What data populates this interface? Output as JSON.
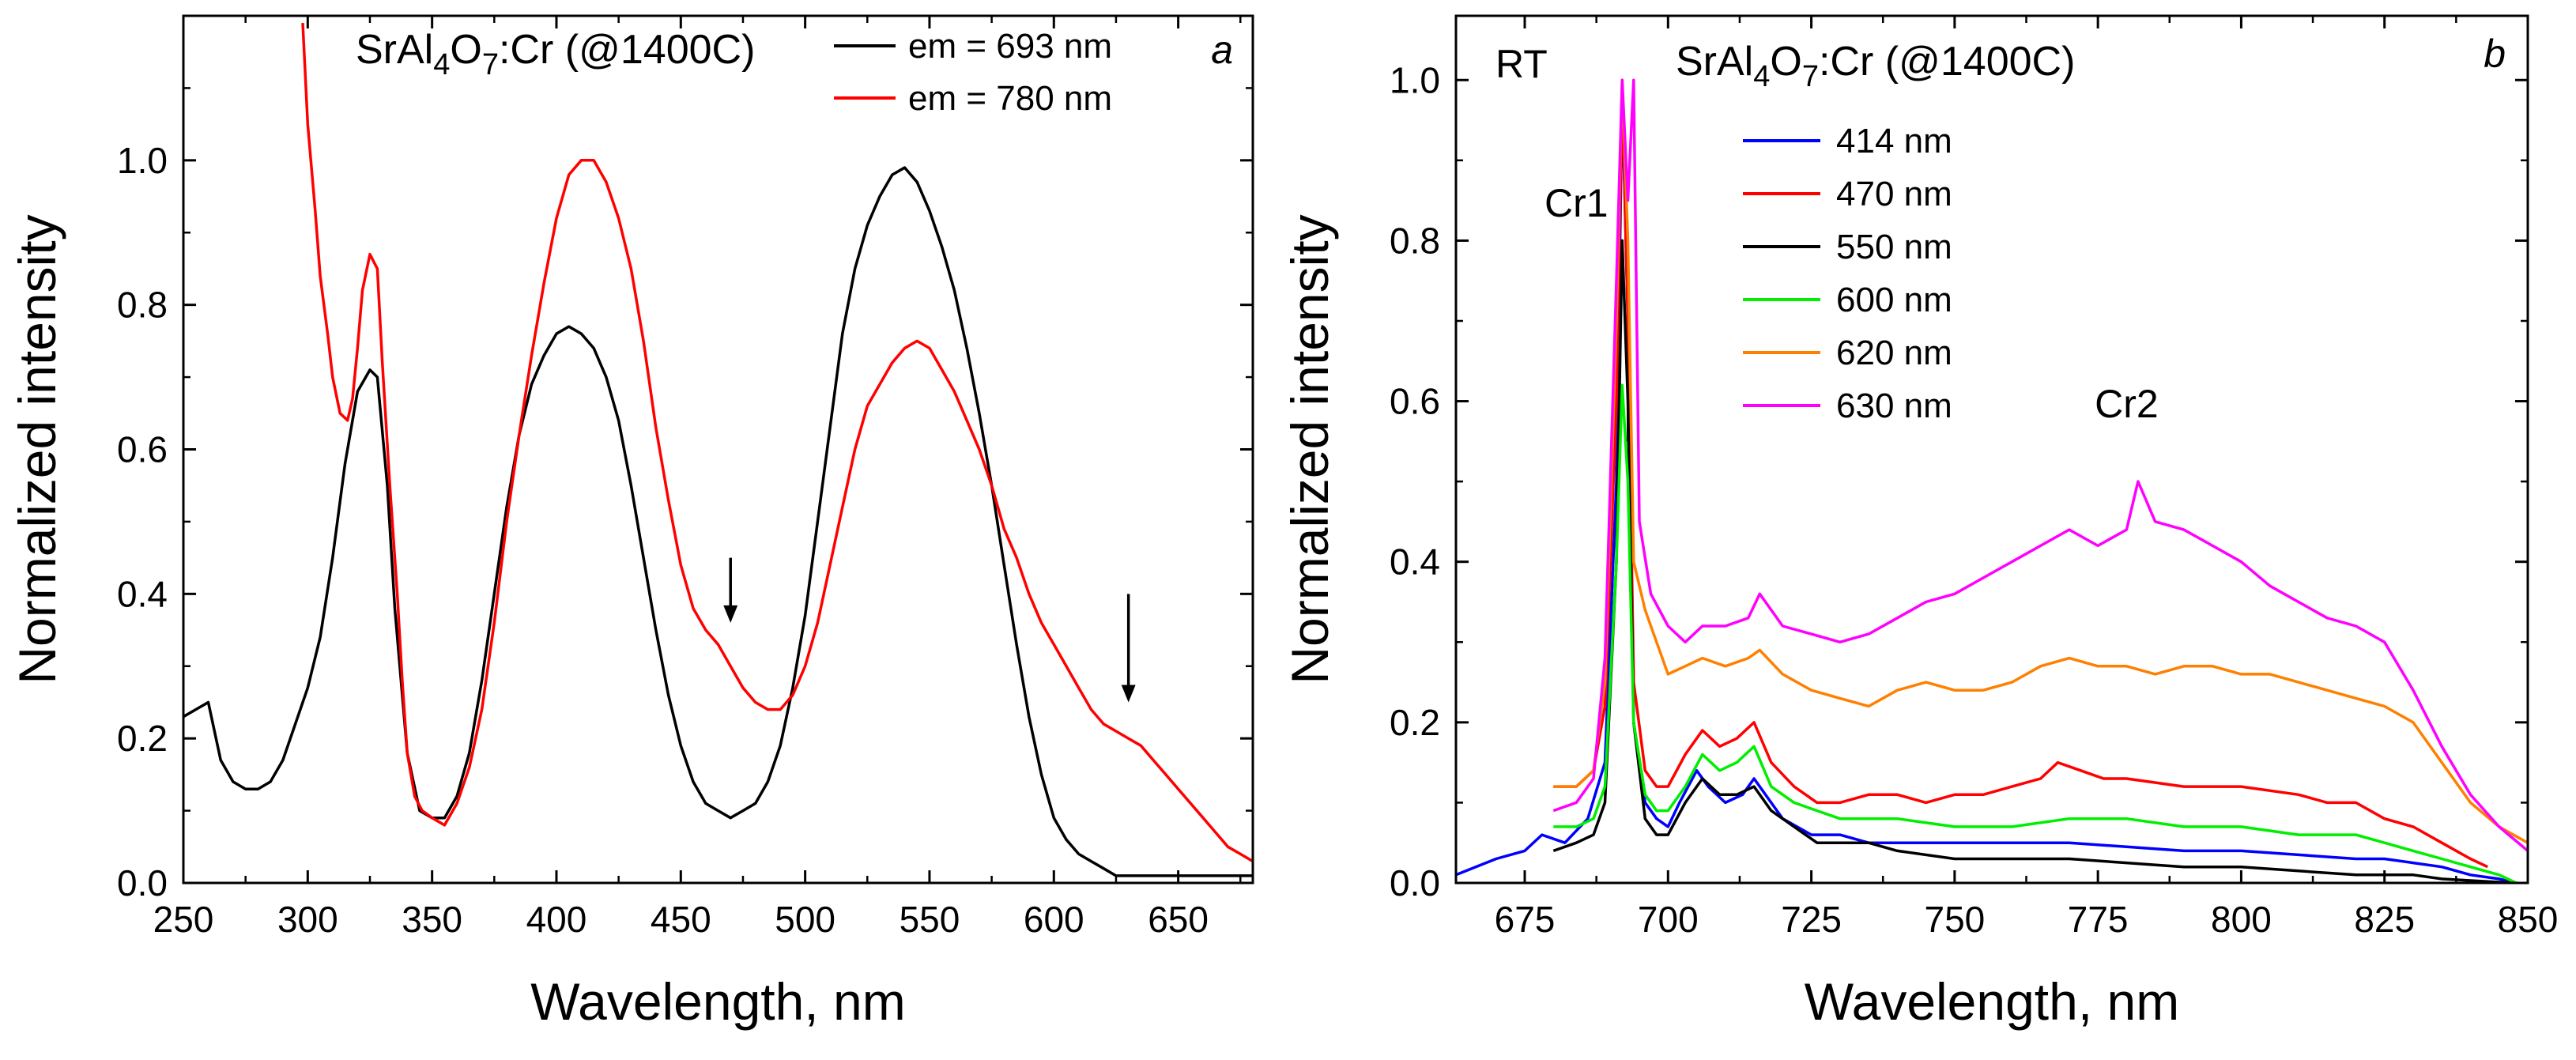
{
  "chart_data": [
    {
      "type": "line",
      "panel": "a",
      "title": "SrAl4O7:Cr (@1400C)",
      "title_parts": [
        "SrAl",
        "4",
        "O",
        "7",
        ":Cr (@1400C)"
      ],
      "xlabel": "Wavelength, nm",
      "ylabel": "Normalized intensity",
      "xlim": [
        250,
        680
      ],
      "ylim": [
        0,
        1.2
      ],
      "xticks": [
        250,
        300,
        350,
        400,
        450,
        500,
        550,
        600,
        650
      ],
      "yticks": [
        0.0,
        0.2,
        0.4,
        0.6,
        0.8,
        1.0
      ],
      "ytick_labels": [
        "0.0",
        "0.2",
        "0.4",
        "0.6",
        "0.8",
        "1.0"
      ],
      "arrows_at_x": [
        470,
        630
      ],
      "series": [
        {
          "name": "em = 693 nm",
          "color": "#000000",
          "x": [
            250,
            255,
            260,
            265,
            270,
            275,
            280,
            285,
            290,
            295,
            300,
            305,
            310,
            315,
            320,
            325,
            328,
            332,
            335,
            340,
            345,
            350,
            355,
            360,
            365,
            370,
            375,
            380,
            385,
            390,
            395,
            400,
            405,
            410,
            415,
            420,
            425,
            430,
            435,
            440,
            445,
            450,
            455,
            460,
            465,
            470,
            475,
            480,
            485,
            490,
            495,
            500,
            505,
            510,
            515,
            520,
            525,
            530,
            535,
            540,
            545,
            550,
            555,
            560,
            565,
            570,
            575,
            580,
            585,
            590,
            595,
            600,
            605,
            610,
            615,
            620,
            625,
            630,
            635,
            640,
            645,
            650,
            655,
            660,
            665,
            670,
            675,
            680
          ],
          "y": [
            0.23,
            0.24,
            0.25,
            0.17,
            0.14,
            0.13,
            0.13,
            0.14,
            0.17,
            0.22,
            0.27,
            0.34,
            0.45,
            0.58,
            0.68,
            0.71,
            0.7,
            0.55,
            0.38,
            0.18,
            0.1,
            0.09,
            0.09,
            0.12,
            0.18,
            0.28,
            0.4,
            0.52,
            0.62,
            0.69,
            0.73,
            0.76,
            0.77,
            0.76,
            0.74,
            0.7,
            0.64,
            0.55,
            0.45,
            0.35,
            0.26,
            0.19,
            0.14,
            0.11,
            0.1,
            0.09,
            0.1,
            0.11,
            0.14,
            0.19,
            0.27,
            0.37,
            0.5,
            0.63,
            0.76,
            0.85,
            0.91,
            0.95,
            0.98,
            0.99,
            0.97,
            0.93,
            0.88,
            0.82,
            0.74,
            0.65,
            0.55,
            0.44,
            0.33,
            0.23,
            0.15,
            0.09,
            0.06,
            0.04,
            0.03,
            0.02,
            0.01,
            0.01,
            0.01,
            0.01,
            0.01,
            0.01,
            0.01,
            0.01,
            0.01,
            0.01,
            0.01,
            0.01
          ]
        },
        {
          "name": "em = 780 nm",
          "color": "#ff0000",
          "x": [
            298,
            300,
            303,
            305,
            308,
            310,
            313,
            316,
            318,
            320,
            322,
            325,
            328,
            330,
            333,
            336,
            338,
            340,
            343,
            346,
            350,
            355,
            360,
            365,
            370,
            375,
            380,
            385,
            390,
            395,
            400,
            405,
            410,
            415,
            420,
            425,
            430,
            435,
            440,
            445,
            450,
            455,
            460,
            465,
            470,
            475,
            480,
            485,
            490,
            495,
            500,
            505,
            510,
            515,
            520,
            525,
            530,
            535,
            540,
            545,
            550,
            555,
            560,
            565,
            570,
            575,
            580,
            585,
            590,
            595,
            600,
            605,
            610,
            615,
            620,
            625,
            630,
            635,
            640,
            645,
            650,
            655,
            660,
            665,
            670,
            675,
            680
          ],
          "y": [
            1.19,
            1.05,
            0.93,
            0.84,
            0.76,
            0.7,
            0.65,
            0.64,
            0.67,
            0.74,
            0.82,
            0.87,
            0.85,
            0.72,
            0.55,
            0.4,
            0.28,
            0.18,
            0.12,
            0.1,
            0.09,
            0.08,
            0.11,
            0.16,
            0.24,
            0.36,
            0.5,
            0.62,
            0.73,
            0.83,
            0.92,
            0.98,
            1.0,
            1.0,
            0.97,
            0.92,
            0.85,
            0.75,
            0.63,
            0.53,
            0.44,
            0.38,
            0.35,
            0.33,
            0.3,
            0.27,
            0.25,
            0.24,
            0.24,
            0.26,
            0.3,
            0.36,
            0.44,
            0.52,
            0.6,
            0.66,
            0.69,
            0.72,
            0.74,
            0.75,
            0.74,
            0.71,
            0.68,
            0.64,
            0.6,
            0.55,
            0.49,
            0.45,
            0.4,
            0.36,
            0.33,
            0.3,
            0.27,
            0.24,
            0.22,
            0.21,
            0.2,
            0.19,
            0.17,
            0.15,
            0.13,
            0.11,
            0.09,
            0.07,
            0.05,
            0.04,
            0.03
          ]
        }
      ]
    },
    {
      "type": "line",
      "panel": "b",
      "title": "SrAl4O7:Cr (@1400C)",
      "title_parts": [
        "SrAl",
        "4",
        "O",
        "7",
        ":Cr (@1400C)"
      ],
      "xlabel": "Wavelength, nm",
      "ylabel": "Normalized intensity",
      "xlim": [
        663,
        850
      ],
      "ylim": [
        0,
        1.08
      ],
      "xticks": [
        675,
        700,
        725,
        750,
        775,
        800,
        825,
        850
      ],
      "yticks": [
        0.0,
        0.2,
        0.4,
        0.6,
        0.8,
        1.0
      ],
      "ytick_labels": [
        "0.0",
        "0.2",
        "0.4",
        "0.6",
        "0.8",
        "1.0"
      ],
      "annotations": [
        {
          "text": "RT",
          "at": "top-left"
        },
        {
          "text": "Cr1",
          "x": 692,
          "y": 0.83
        },
        {
          "text": "Cr2",
          "x": 780,
          "y": 0.58
        }
      ],
      "series": [
        {
          "name": "414 nm",
          "color": "#0000ff",
          "x": [
            663,
            670,
            675,
            678,
            682,
            686,
            689,
            691,
            692,
            693,
            694,
            696,
            698,
            700,
            702,
            705,
            707,
            710,
            713,
            715,
            718,
            720,
            725,
            730,
            735,
            740,
            750,
            760,
            770,
            780,
            790,
            800,
            810,
            820,
            825,
            830,
            835,
            840,
            845,
            848
          ],
          "y": [
            0.01,
            0.03,
            0.04,
            0.06,
            0.05,
            0.08,
            0.15,
            0.5,
            0.98,
            0.7,
            0.2,
            0.1,
            0.08,
            0.07,
            0.1,
            0.14,
            0.12,
            0.1,
            0.11,
            0.13,
            0.1,
            0.08,
            0.06,
            0.06,
            0.05,
            0.05,
            0.05,
            0.05,
            0.05,
            0.045,
            0.04,
            0.04,
            0.035,
            0.03,
            0.03,
            0.025,
            0.02,
            0.01,
            0.005,
            0.0
          ]
        },
        {
          "name": "470 nm",
          "color": "#ff0000",
          "x": [
            680,
            684,
            687,
            689,
            691,
            692,
            693,
            694,
            696,
            698,
            700,
            703,
            706,
            709,
            712,
            715,
            718,
            722,
            726,
            730,
            735,
            740,
            745,
            750,
            755,
            760,
            765,
            768,
            772,
            776,
            780,
            790,
            800,
            810,
            815,
            820,
            825,
            830,
            835,
            840,
            843
          ],
          "y": [
            0.12,
            0.12,
            0.14,
            0.22,
            0.6,
            0.99,
            0.7,
            0.25,
            0.14,
            0.12,
            0.12,
            0.16,
            0.19,
            0.17,
            0.18,
            0.2,
            0.15,
            0.12,
            0.1,
            0.1,
            0.11,
            0.11,
            0.1,
            0.11,
            0.11,
            0.12,
            0.13,
            0.15,
            0.14,
            0.13,
            0.13,
            0.12,
            0.12,
            0.11,
            0.1,
            0.1,
            0.08,
            0.07,
            0.05,
            0.03,
            0.02
          ]
        },
        {
          "name": "550 nm",
          "color": "#000000",
          "x": [
            680,
            684,
            687,
            689,
            691,
            692,
            693,
            694,
            696,
            698,
            700,
            703,
            706,
            709,
            712,
            715,
            718,
            722,
            726,
            730,
            735,
            740,
            750,
            760,
            770,
            780,
            790,
            800,
            810,
            820,
            830,
            835,
            840,
            845,
            848
          ],
          "y": [
            0.04,
            0.05,
            0.06,
            0.1,
            0.4,
            0.8,
            0.6,
            0.2,
            0.08,
            0.06,
            0.06,
            0.1,
            0.13,
            0.11,
            0.11,
            0.12,
            0.09,
            0.07,
            0.05,
            0.05,
            0.05,
            0.04,
            0.03,
            0.03,
            0.03,
            0.025,
            0.02,
            0.02,
            0.015,
            0.01,
            0.01,
            0.005,
            0.003,
            0.001,
            0.0
          ]
        },
        {
          "name": "600 nm",
          "color": "#00ee00",
          "x": [
            680,
            684,
            687,
            689,
            691,
            692,
            693,
            694,
            696,
            698,
            700,
            703,
            706,
            709,
            712,
            715,
            718,
            722,
            726,
            730,
            735,
            740,
            750,
            760,
            770,
            780,
            790,
            800,
            810,
            820,
            825,
            830,
            835,
            840,
            845,
            848
          ],
          "y": [
            0.07,
            0.07,
            0.08,
            0.12,
            0.4,
            0.62,
            0.5,
            0.2,
            0.11,
            0.09,
            0.09,
            0.12,
            0.16,
            0.14,
            0.15,
            0.17,
            0.12,
            0.1,
            0.09,
            0.08,
            0.08,
            0.08,
            0.07,
            0.07,
            0.08,
            0.08,
            0.07,
            0.07,
            0.06,
            0.06,
            0.05,
            0.04,
            0.03,
            0.02,
            0.01,
            0.0
          ]
        },
        {
          "name": "620 nm",
          "color": "#ff8000",
          "x": [
            680,
            684,
            687,
            689,
            691,
            692,
            693,
            694,
            696,
            698,
            700,
            703,
            706,
            710,
            714,
            716,
            720,
            725,
            730,
            735,
            740,
            745,
            750,
            755,
            760,
            765,
            770,
            775,
            780,
            785,
            790,
            795,
            800,
            805,
            810,
            815,
            820,
            825,
            830,
            835,
            840,
            845,
            850
          ],
          "y": [
            0.12,
            0.12,
            0.14,
            0.25,
            0.7,
            1.0,
            0.8,
            0.4,
            0.34,
            0.3,
            0.26,
            0.27,
            0.28,
            0.27,
            0.28,
            0.29,
            0.26,
            0.24,
            0.23,
            0.22,
            0.24,
            0.25,
            0.24,
            0.24,
            0.25,
            0.27,
            0.28,
            0.27,
            0.27,
            0.26,
            0.27,
            0.27,
            0.26,
            0.26,
            0.25,
            0.24,
            0.23,
            0.22,
            0.2,
            0.15,
            0.1,
            0.07,
            0.05
          ]
        },
        {
          "name": "630 nm",
          "color": "#ff00ff",
          "x": [
            680,
            684,
            687,
            689,
            691,
            692,
            693,
            694,
            695,
            697,
            700,
            703,
            706,
            710,
            714,
            716,
            720,
            725,
            730,
            735,
            740,
            745,
            750,
            755,
            760,
            765,
            770,
            775,
            780,
            782,
            785,
            790,
            795,
            800,
            805,
            810,
            815,
            820,
            825,
            830,
            835,
            840,
            845,
            850
          ],
          "y": [
            0.09,
            0.1,
            0.13,
            0.28,
            0.75,
            1.0,
            0.85,
            1.0,
            0.45,
            0.36,
            0.32,
            0.3,
            0.32,
            0.32,
            0.33,
            0.36,
            0.32,
            0.31,
            0.3,
            0.31,
            0.33,
            0.35,
            0.36,
            0.38,
            0.4,
            0.42,
            0.44,
            0.42,
            0.44,
            0.5,
            0.45,
            0.44,
            0.42,
            0.4,
            0.37,
            0.35,
            0.33,
            0.32,
            0.3,
            0.24,
            0.17,
            0.11,
            0.07,
            0.04
          ]
        }
      ]
    }
  ]
}
